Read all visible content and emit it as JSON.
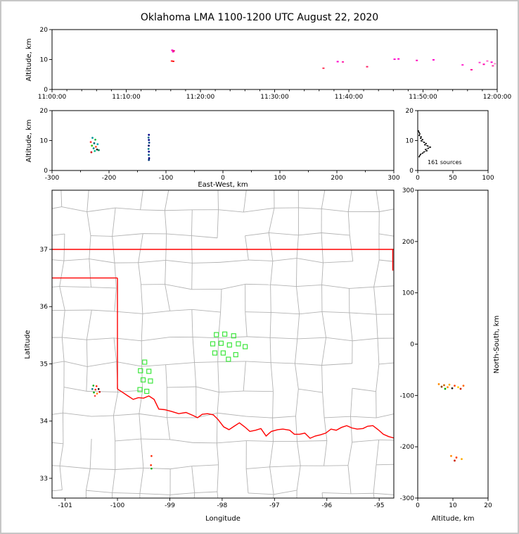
{
  "title": "Oklahoma LMA 1100-1200 UTC August 22, 2020",
  "chart_data": {
    "type": "scatter",
    "description": "XLMA-style lightning mapping array display: time-height, EW-height, altitude histogram, plan-view map, NS-height panels",
    "panels": {
      "time_height": {
        "ylabel": "Altitude, km",
        "ylim": [
          0,
          20
        ],
        "yticks": [
          0,
          10,
          20
        ],
        "xlim_seconds": [
          0,
          3600
        ],
        "xticks": [
          {
            "t": 0,
            "label": "11:00:00"
          },
          {
            "t": 600,
            "label": "11:10:00"
          },
          {
            "t": 1200,
            "label": "11:20:00"
          },
          {
            "t": 1800,
            "label": "11:30:00"
          },
          {
            "t": 2400,
            "label": "11:40:00"
          },
          {
            "t": 3000,
            "label": "11:50:00"
          },
          {
            "t": 3600,
            "label": "12:00:00"
          }
        ],
        "points": [
          [
            972,
            13.1,
            "#ff00cc"
          ],
          [
            979,
            12.6,
            "#ff00cc"
          ],
          [
            985,
            12.9,
            "#e81860"
          ],
          [
            969,
            9.5,
            "#ff2222"
          ],
          [
            981,
            9.4,
            "#ff2222"
          ],
          [
            2195,
            7.1,
            "#ff3355"
          ],
          [
            2310,
            9.3,
            "#ff00cc"
          ],
          [
            2352,
            9.2,
            "#ff22aa"
          ],
          [
            2548,
            7.6,
            "#ff2266"
          ],
          [
            2770,
            10.1,
            "#ff00cc"
          ],
          [
            2802,
            10.2,
            "#ff00cc"
          ],
          [
            2950,
            9.7,
            "#ff11bb"
          ],
          [
            3085,
            9.9,
            "#ff00cc"
          ],
          [
            3320,
            8.2,
            "#ff22cc"
          ],
          [
            3392,
            6.6,
            "#ff0099"
          ],
          [
            3458,
            9.0,
            "#ff44cc"
          ],
          [
            3492,
            8.4,
            "#ff00aa"
          ],
          [
            3520,
            9.5,
            "#ff66cc"
          ],
          [
            3555,
            9.1,
            "#ff00cc"
          ],
          [
            3582,
            8.6,
            "#ff88cc"
          ],
          [
            3565,
            7.9,
            "#ff33aa"
          ]
        ]
      },
      "ew_height": {
        "xlabel": "East-West, km",
        "ylabel": "Altitude, km",
        "xlim": [
          -300,
          300
        ],
        "xticks": [
          -300,
          -200,
          -100,
          0,
          100,
          200,
          300
        ],
        "ylim": [
          0,
          20
        ],
        "yticks": [
          0,
          10,
          20
        ],
        "points": [
          [
            -229,
            10.9,
            "#009999"
          ],
          [
            -224,
            10.3,
            "#22bb44"
          ],
          [
            -232,
            9.5,
            "#ff3333"
          ],
          [
            -226,
            9.1,
            "#006677"
          ],
          [
            -220,
            8.8,
            "#00aaaa"
          ],
          [
            -230,
            8.3,
            "#33bb00"
          ],
          [
            -223,
            7.9,
            "#ff5522"
          ],
          [
            -227,
            7.4,
            "#008888"
          ],
          [
            -221,
            7.0,
            "#222222"
          ],
          [
            -225,
            6.5,
            "#00bb88"
          ],
          [
            -231,
            6.1,
            "#cc2222"
          ],
          [
            -218,
            6.8,
            "#008855"
          ],
          [
            -130,
            11.9,
            "#000088"
          ],
          [
            -130.6,
            11.0,
            "#006688"
          ],
          [
            -130,
            10.2,
            "#000088"
          ],
          [
            -129.5,
            9.3,
            "#004488"
          ],
          [
            -130.2,
            8.3,
            "#000066"
          ],
          [
            -130.6,
            7.2,
            "#007788"
          ],
          [
            -130,
            6.3,
            "#000088"
          ],
          [
            -130.2,
            5.2,
            "#005588"
          ],
          [
            -129.6,
            4.1,
            "#000077"
          ],
          [
            -130,
            3.5,
            "#003377"
          ]
        ]
      },
      "histogram": {
        "annotation": "161 sources",
        "xlim": [
          0,
          100
        ],
        "xticks": [
          0,
          50,
          100
        ],
        "ylim": [
          0,
          20
        ],
        "yticks": [
          0,
          10,
          20
        ],
        "profile": [
          [
            1,
            13.2
          ],
          [
            2,
            12.7
          ],
          [
            3,
            12.2
          ],
          [
            2,
            11.7
          ],
          [
            5,
            11.2
          ],
          [
            4,
            10.8
          ],
          [
            7,
            10.3
          ],
          [
            5,
            9.9
          ],
          [
            9,
            9.4
          ],
          [
            12,
            9.0
          ],
          [
            10,
            8.6
          ],
          [
            14,
            8.2
          ],
          [
            18,
            7.8
          ],
          [
            15,
            7.4
          ],
          [
            11,
            7.0
          ],
          [
            13,
            6.6
          ],
          [
            9,
            6.2
          ],
          [
            7,
            5.8
          ],
          [
            4,
            5.4
          ],
          [
            3,
            5.0
          ],
          [
            2,
            4.6
          ]
        ]
      },
      "map": {
        "xlabel": "Longitude",
        "ylabel": "Latitude",
        "xlim": [
          -101.25,
          -94.72
        ],
        "xticks": [
          -101,
          -100,
          -99,
          -98,
          -97,
          -96,
          -95
        ],
        "ylim": [
          32.655,
          38.034
        ],
        "yticks": [
          33,
          34,
          35,
          36,
          37
        ],
        "county_color": "#b3b3b3",
        "border_color": "#ff0000",
        "square_color": "#3ce63c",
        "state_border": [
          [
            [
              -101.25,
              37.0
            ],
            [
              -94.6,
              37.0
            ]
          ],
          [
            [
              -101.25,
              36.5
            ],
            [
              -100.0,
              36.5
            ]
          ],
          [
            [
              -100.0,
              36.5
            ],
            [
              -100.0,
              34.56
            ]
          ],
          [
            [
              -100.0,
              34.56
            ],
            [
              -99.9,
              34.5
            ],
            [
              -99.8,
              34.44
            ],
            [
              -99.7,
              34.38
            ],
            [
              -99.6,
              34.41
            ],
            [
              -99.5,
              34.4
            ],
            [
              -99.4,
              34.44
            ],
            [
              -99.3,
              34.38
            ],
            [
              -99.21,
              34.21
            ],
            [
              -99.1,
              34.2
            ],
            [
              -98.97,
              34.17
            ],
            [
              -98.83,
              34.13
            ],
            [
              -98.69,
              34.15
            ],
            [
              -98.56,
              34.1
            ],
            [
              -98.47,
              34.06
            ],
            [
              -98.38,
              34.12
            ],
            [
              -98.28,
              34.13
            ],
            [
              -98.17,
              34.11
            ],
            [
              -98.08,
              34.03
            ],
            [
              -97.97,
              33.9
            ],
            [
              -97.87,
              33.85
            ],
            [
              -97.77,
              33.91
            ],
            [
              -97.67,
              33.97
            ],
            [
              -97.57,
              33.9
            ],
            [
              -97.47,
              33.82
            ],
            [
              -97.36,
              33.84
            ],
            [
              -97.26,
              33.87
            ],
            [
              -97.16,
              33.74
            ],
            [
              -97.06,
              33.82
            ],
            [
              -96.94,
              33.85
            ],
            [
              -96.84,
              33.86
            ],
            [
              -96.71,
              33.84
            ],
            [
              -96.62,
              33.77
            ],
            [
              -96.52,
              33.77
            ],
            [
              -96.42,
              33.79
            ],
            [
              -96.32,
              33.7
            ],
            [
              -96.22,
              33.74
            ],
            [
              -96.12,
              33.76
            ],
            [
              -96.02,
              33.79
            ],
            [
              -95.92,
              33.86
            ],
            [
              -95.82,
              33.84
            ],
            [
              -95.72,
              33.89
            ],
            [
              -95.62,
              33.92
            ],
            [
              -95.52,
              33.88
            ],
            [
              -95.42,
              33.86
            ],
            [
              -95.31,
              33.87
            ],
            [
              -95.22,
              33.91
            ],
            [
              -95.12,
              33.92
            ],
            [
              -95.02,
              33.85
            ],
            [
              -94.92,
              33.77
            ],
            [
              -94.82,
              33.73
            ],
            [
              -94.7,
              33.7
            ]
          ],
          [
            [
              -94.74,
              37.0
            ],
            [
              -94.74,
              36.63
            ]
          ]
        ],
        "squares": [
          [
            -98.11,
            35.51
          ],
          [
            -97.95,
            35.52
          ],
          [
            -97.78,
            35.49
          ],
          [
            -98.18,
            35.35
          ],
          [
            -98.02,
            35.36
          ],
          [
            -97.86,
            35.33
          ],
          [
            -97.69,
            35.35
          ],
          [
            -97.56,
            35.3
          ],
          [
            -98.14,
            35.19
          ],
          [
            -97.98,
            35.19
          ],
          [
            -97.74,
            35.16
          ],
          [
            -97.88,
            35.08
          ],
          [
            -99.48,
            35.03
          ],
          [
            -99.56,
            34.88
          ],
          [
            -99.4,
            34.87
          ],
          [
            -99.51,
            34.72
          ],
          [
            -99.37,
            34.7
          ],
          [
            -99.57,
            34.55
          ],
          [
            -99.44,
            34.52
          ]
        ],
        "dots": [
          [
            -100.46,
            34.62,
            "#00aa00"
          ],
          [
            -100.4,
            34.61,
            "#ff2200"
          ],
          [
            -100.48,
            34.56,
            "#007788"
          ],
          [
            -100.42,
            34.55,
            "#ff2200"
          ],
          [
            -100.36,
            34.56,
            "#111111"
          ],
          [
            -100.45,
            34.5,
            "#00aa00"
          ],
          [
            -100.39,
            34.48,
            "#ff8800"
          ],
          [
            -100.34,
            34.51,
            "#cc0000"
          ],
          [
            -100.43,
            34.44,
            "#ff4444"
          ],
          [
            -99.35,
            33.39,
            "#ff2200"
          ],
          [
            -99.36,
            33.23,
            "#ff2200"
          ],
          [
            -99.35,
            33.17,
            "#00aa00"
          ]
        ]
      },
      "ns_height": {
        "xlabel": "Altitude, km",
        "ylabel": "North-South, km",
        "xlim": [
          0,
          20
        ],
        "xticks": [
          0,
          10,
          20
        ],
        "ylim": [
          -300,
          300
        ],
        "yticks": [
          -300,
          -200,
          -100,
          0,
          100,
          200,
          300
        ],
        "points": [
          [
            6.0,
            -78,
            "#ff8800"
          ],
          [
            7.5,
            -80,
            "#cc6600"
          ],
          [
            9.0,
            -79,
            "#ffaa00"
          ],
          [
            10.5,
            -81,
            "#ff4400"
          ],
          [
            6.8,
            -83,
            "#884400"
          ],
          [
            8.5,
            -84,
            "#ff8800"
          ],
          [
            11.5,
            -84,
            "#ffcc00"
          ],
          [
            13.0,
            -81,
            "#ff6600"
          ],
          [
            9.8,
            -86,
            "#222222"
          ],
          [
            12.2,
            -87,
            "#cc2200"
          ],
          [
            7.8,
            -87,
            "#00aa00"
          ],
          [
            9.5,
            -218,
            "#ff8800"
          ],
          [
            11.0,
            -221,
            "#ff4400"
          ],
          [
            12.5,
            -224,
            "#ffaa00"
          ],
          [
            10.5,
            -227,
            "#cc2200"
          ]
        ]
      }
    }
  }
}
